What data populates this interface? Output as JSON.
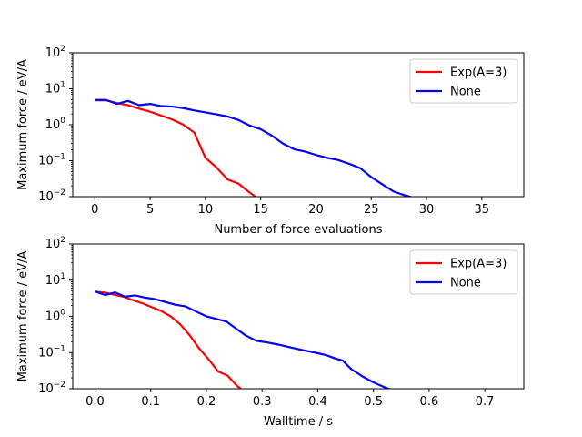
{
  "chart_data": [
    {
      "type": "line",
      "xlabel": "Number of force evaluations",
      "ylabel": "Maximum force / eV/A",
      "xlim": [
        -2,
        38.8
      ],
      "ylim": [
        0.01,
        100
      ],
      "yscale": "log",
      "xticks": [
        0,
        5,
        10,
        15,
        20,
        25,
        30,
        35
      ],
      "xtick_labels": [
        "0",
        "5",
        "10",
        "15",
        "20",
        "25",
        "30",
        "35"
      ],
      "yticks": [
        0.01,
        0.1,
        1,
        10,
        100
      ],
      "ytick_labels": [
        {
          "base": "10",
          "exp": "−2"
        },
        {
          "base": "10",
          "exp": "−1"
        },
        {
          "base": "10",
          "exp": "0"
        },
        {
          "base": "10",
          "exp": "1"
        },
        {
          "base": "10",
          "exp": "2"
        }
      ],
      "grid": false,
      "legend": "top-right",
      "series": [
        {
          "name": "Exp(A=3)",
          "color": "#ff0000",
          "x": [
            0,
            1,
            2,
            3,
            4,
            5,
            6,
            7,
            8,
            9,
            10,
            11,
            12,
            13,
            14,
            15
          ],
          "y": [
            4.8,
            4.8,
            4.0,
            3.5,
            2.8,
            2.3,
            1.8,
            1.4,
            1.0,
            0.6,
            0.12,
            0.065,
            0.03,
            0.023,
            0.013,
            0.008
          ]
        },
        {
          "name": "None",
          "color": "#0000ff",
          "x": [
            0,
            1,
            2,
            3,
            4,
            5,
            6,
            7,
            8,
            9,
            10,
            11,
            12,
            13,
            14,
            15,
            16,
            17,
            18,
            19,
            20,
            21,
            22,
            23,
            24,
            25,
            26,
            27,
            28,
            29
          ],
          "y": [
            4.9,
            4.9,
            3.8,
            4.6,
            3.5,
            3.8,
            3.3,
            3.2,
            2.9,
            2.5,
            2.2,
            1.95,
            1.7,
            1.35,
            0.95,
            0.75,
            0.5,
            0.3,
            0.21,
            0.18,
            0.145,
            0.12,
            0.105,
            0.082,
            0.062,
            0.035,
            0.022,
            0.014,
            0.011,
            0.009
          ]
        }
      ]
    },
    {
      "type": "line",
      "xlabel": "Walltime / s",
      "ylabel": "Maximum force / eV/A",
      "xlim": [
        -0.04,
        0.77
      ],
      "ylim": [
        0.01,
        100
      ],
      "yscale": "log",
      "xticks": [
        0.0,
        0.1,
        0.2,
        0.3,
        0.4,
        0.5,
        0.6,
        0.7
      ],
      "xtick_labels": [
        "0.0",
        "0.1",
        "0.2",
        "0.3",
        "0.4",
        "0.5",
        "0.6",
        "0.7"
      ],
      "yticks": [
        0.01,
        0.1,
        1,
        10,
        100
      ],
      "ytick_labels": [
        {
          "base": "10",
          "exp": "−2"
        },
        {
          "base": "10",
          "exp": "−1"
        },
        {
          "base": "10",
          "exp": "0"
        },
        {
          "base": "10",
          "exp": "1"
        },
        {
          "base": "10",
          "exp": "2"
        }
      ],
      "grid": false,
      "legend": "top-right",
      "series": [
        {
          "name": "Exp(A=3)",
          "color": "#ff0000",
          "x": [
            0.0,
            0.017,
            0.034,
            0.051,
            0.068,
            0.085,
            0.102,
            0.119,
            0.136,
            0.153,
            0.17,
            0.187,
            0.204,
            0.221,
            0.238,
            0.255,
            0.27
          ],
          "y": [
            4.8,
            4.6,
            4.0,
            3.5,
            2.8,
            2.3,
            1.8,
            1.4,
            1.0,
            0.6,
            0.3,
            0.13,
            0.065,
            0.03,
            0.023,
            0.012,
            0.008
          ]
        },
        {
          "name": "None",
          "color": "#0000ff",
          "x": [
            0.0,
            0.018,
            0.036,
            0.054,
            0.072,
            0.09,
            0.108,
            0.126,
            0.144,
            0.162,
            0.18,
            0.2,
            0.218,
            0.236,
            0.25,
            0.27,
            0.29,
            0.31,
            0.33,
            0.35,
            0.375,
            0.395,
            0.415,
            0.43,
            0.445,
            0.46,
            0.48,
            0.5,
            0.52,
            0.535
          ],
          "y": [
            4.9,
            3.9,
            4.6,
            3.5,
            3.8,
            3.3,
            3.0,
            2.5,
            2.1,
            1.9,
            1.4,
            1.0,
            0.85,
            0.72,
            0.5,
            0.3,
            0.21,
            0.19,
            0.165,
            0.14,
            0.115,
            0.1,
            0.085,
            0.07,
            0.06,
            0.035,
            0.022,
            0.015,
            0.011,
            0.009
          ]
        }
      ]
    }
  ]
}
